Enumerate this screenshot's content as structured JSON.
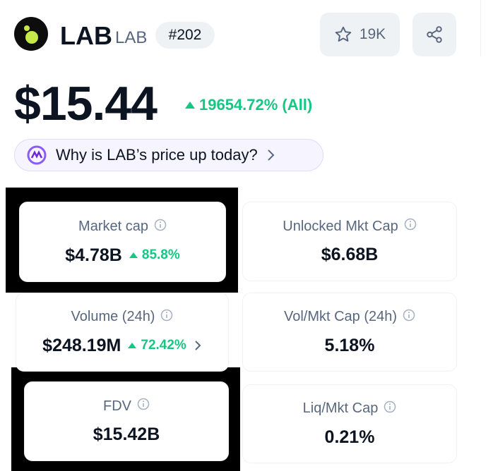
{
  "header": {
    "name": "LAB",
    "symbol": "LAB",
    "rank": "#202",
    "watchlist_count": "19K"
  },
  "price": {
    "value": "$15.44",
    "change": "19654.72% (All)"
  },
  "prompt": "Why is LAB’s price up today?",
  "stats": [
    {
      "label": "Market cap",
      "value": "$4.78B",
      "change": "85.8%"
    },
    {
      "label": "Unlocked Mkt Cap",
      "value": "$6.68B"
    },
    {
      "label": "Volume (24h)",
      "value": "$248.19M",
      "change": "72.42%"
    },
    {
      "label": "Vol/Mkt Cap (24h)",
      "value": "5.18%"
    },
    {
      "label": "FDV",
      "value": "$15.42B"
    },
    {
      "label": "Liq/Mkt Cap",
      "value": "0.21%"
    }
  ]
}
